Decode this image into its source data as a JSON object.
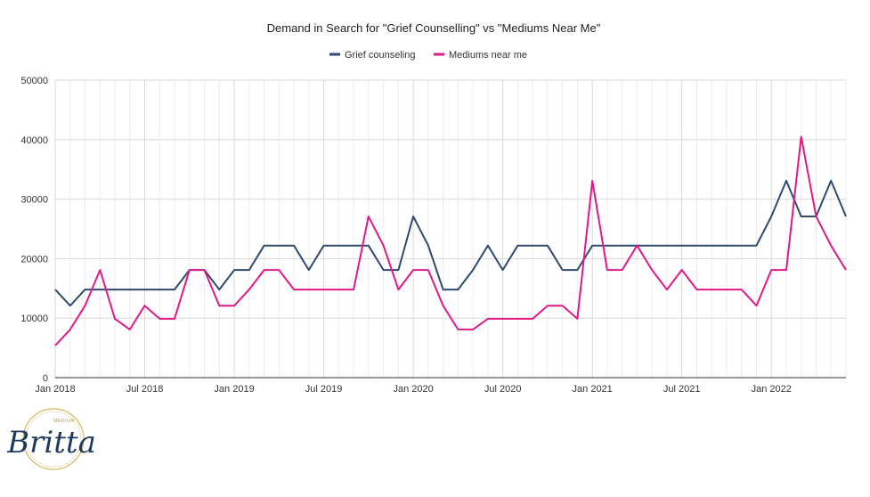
{
  "chart_data": {
    "type": "line",
    "title": "Demand in Search for \"Grief Counselling\" vs \"Mediums Near Me\"",
    "xlabel": "",
    "ylabel": "",
    "ylim": [
      0,
      50000
    ],
    "yticks": [
      "0",
      "10000",
      "20000",
      "30000",
      "40000",
      "50000"
    ],
    "x_tick_labels": [
      "Jan 2018",
      "Jul 2018",
      "Jan 2019",
      "Jul 2019",
      "Jan 2020",
      "Jul 2020",
      "Jan 2021",
      "Jul 2021",
      "Jan 2022"
    ],
    "x": [
      "2018-01",
      "2018-02",
      "2018-03",
      "2018-04",
      "2018-05",
      "2018-06",
      "2018-07",
      "2018-08",
      "2018-09",
      "2018-10",
      "2018-11",
      "2018-12",
      "2019-01",
      "2019-02",
      "2019-03",
      "2019-04",
      "2019-05",
      "2019-06",
      "2019-07",
      "2019-08",
      "2019-09",
      "2019-10",
      "2019-11",
      "2019-12",
      "2020-01",
      "2020-02",
      "2020-03",
      "2020-04",
      "2020-05",
      "2020-06",
      "2020-07",
      "2020-08",
      "2020-09",
      "2020-10",
      "2020-11",
      "2020-12",
      "2021-01",
      "2021-02",
      "2021-03",
      "2021-04",
      "2021-05",
      "2021-06",
      "2021-07",
      "2021-08",
      "2021-09",
      "2021-10",
      "2021-11",
      "2021-12",
      "2022-01",
      "2022-02",
      "2022-03",
      "2022-04",
      "2022-05",
      "2022-06"
    ],
    "grid": true,
    "legend_position": "top",
    "series": [
      {
        "name": "Grief counseling",
        "color": "#2e4a6e",
        "values": [
          14800,
          12100,
          14800,
          14800,
          14800,
          14800,
          14800,
          14800,
          14800,
          18100,
          18100,
          14800,
          18100,
          18100,
          22200,
          22200,
          22200,
          18100,
          22200,
          22200,
          22200,
          22200,
          18100,
          18100,
          27100,
          22200,
          14800,
          14800,
          18100,
          22200,
          18100,
          22200,
          22200,
          22200,
          18100,
          18100,
          22200,
          22200,
          22200,
          22200,
          22200,
          22200,
          22200,
          22200,
          22200,
          22200,
          22200,
          22200,
          27100,
          33100,
          27100,
          27100,
          33100,
          27100
        ]
      },
      {
        "name": "Mediums near me",
        "color": "#e0198a",
        "values": [
          5400,
          8100,
          12100,
          18100,
          9900,
          8100,
          12100,
          9900,
          9900,
          18100,
          18100,
          12100,
          12100,
          14800,
          18100,
          18100,
          14800,
          14800,
          14800,
          14800,
          14800,
          27100,
          22200,
          14800,
          18100,
          18100,
          12100,
          8100,
          8100,
          9900,
          9900,
          9900,
          9900,
          12100,
          12100,
          9900,
          33100,
          18100,
          18100,
          22200,
          18100,
          14800,
          18100,
          14800,
          14800,
          14800,
          14800,
          12100,
          18100,
          18100,
          40500,
          27100,
          22200,
          18100
        ]
      }
    ]
  },
  "logo": {
    "small_text": "MEDIUM",
    "script_text": "Britta",
    "ring_color": "#d9b865",
    "script_color": "#1f3a5f"
  }
}
